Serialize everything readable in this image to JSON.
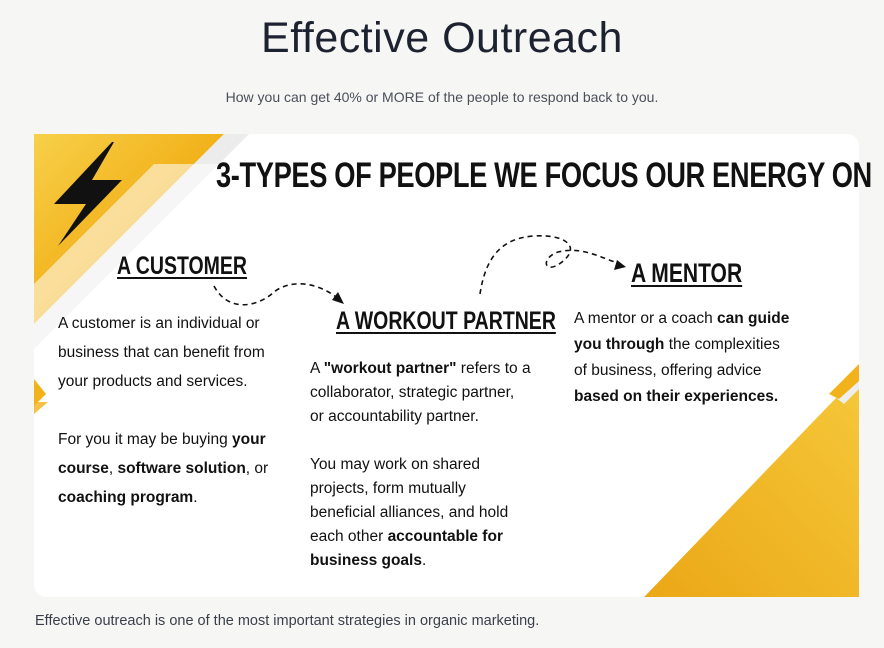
{
  "header": {
    "title": "Effective Outreach",
    "subtitle": "How you can get 40% or MORE of the people to respond back to you."
  },
  "card": {
    "title": "3-TYPES OF PEOPLE WE FOCUS OUR ENERGY ON",
    "icon": "lightning-bolt-icon",
    "accent_color": "#f2b21b",
    "customer": {
      "heading": "A CUSTOMER",
      "p1": [
        "A customer is an individual or",
        "business that can benefit from",
        "your products and services."
      ],
      "p2_l1_a": "For you it may be buying ",
      "p2_l1_b": "your",
      "p2_l2_a": "course",
      "p2_l2_b": ", ",
      "p2_l2_c": "software solution",
      "p2_l2_d": ", or",
      "p2_l3_a": "coaching program",
      "p2_l3_b": "."
    },
    "partner": {
      "heading": "A WORKOUT PARTNER",
      "p1_l1_a": "A ",
      "p1_l1_b": "\"workout partner\"",
      "p1_l1_c": " refers to a",
      "p1_l2": "collaborator, strategic partner,",
      "p1_l3": "or accountability partner.",
      "p2_l1": "You may work on shared",
      "p2_l2": "projects, form mutually",
      "p2_l3": "beneficial alliances, and hold",
      "p2_l4_a": "each other ",
      "p2_l4_b": "accountable for",
      "p2_l5_a": "business goals",
      "p2_l5_b": "."
    },
    "mentor": {
      "heading": "A MENTOR",
      "l1_a": "A mentor or a coach ",
      "l1_b": "can guide",
      "l2_a": "you through",
      "l2_b": " the complexities",
      "l3": "of business, offering advice",
      "l4": "based on their experiences."
    }
  },
  "footer": {
    "text": "Effective outreach is one of the most important strategies in organic marketing."
  }
}
